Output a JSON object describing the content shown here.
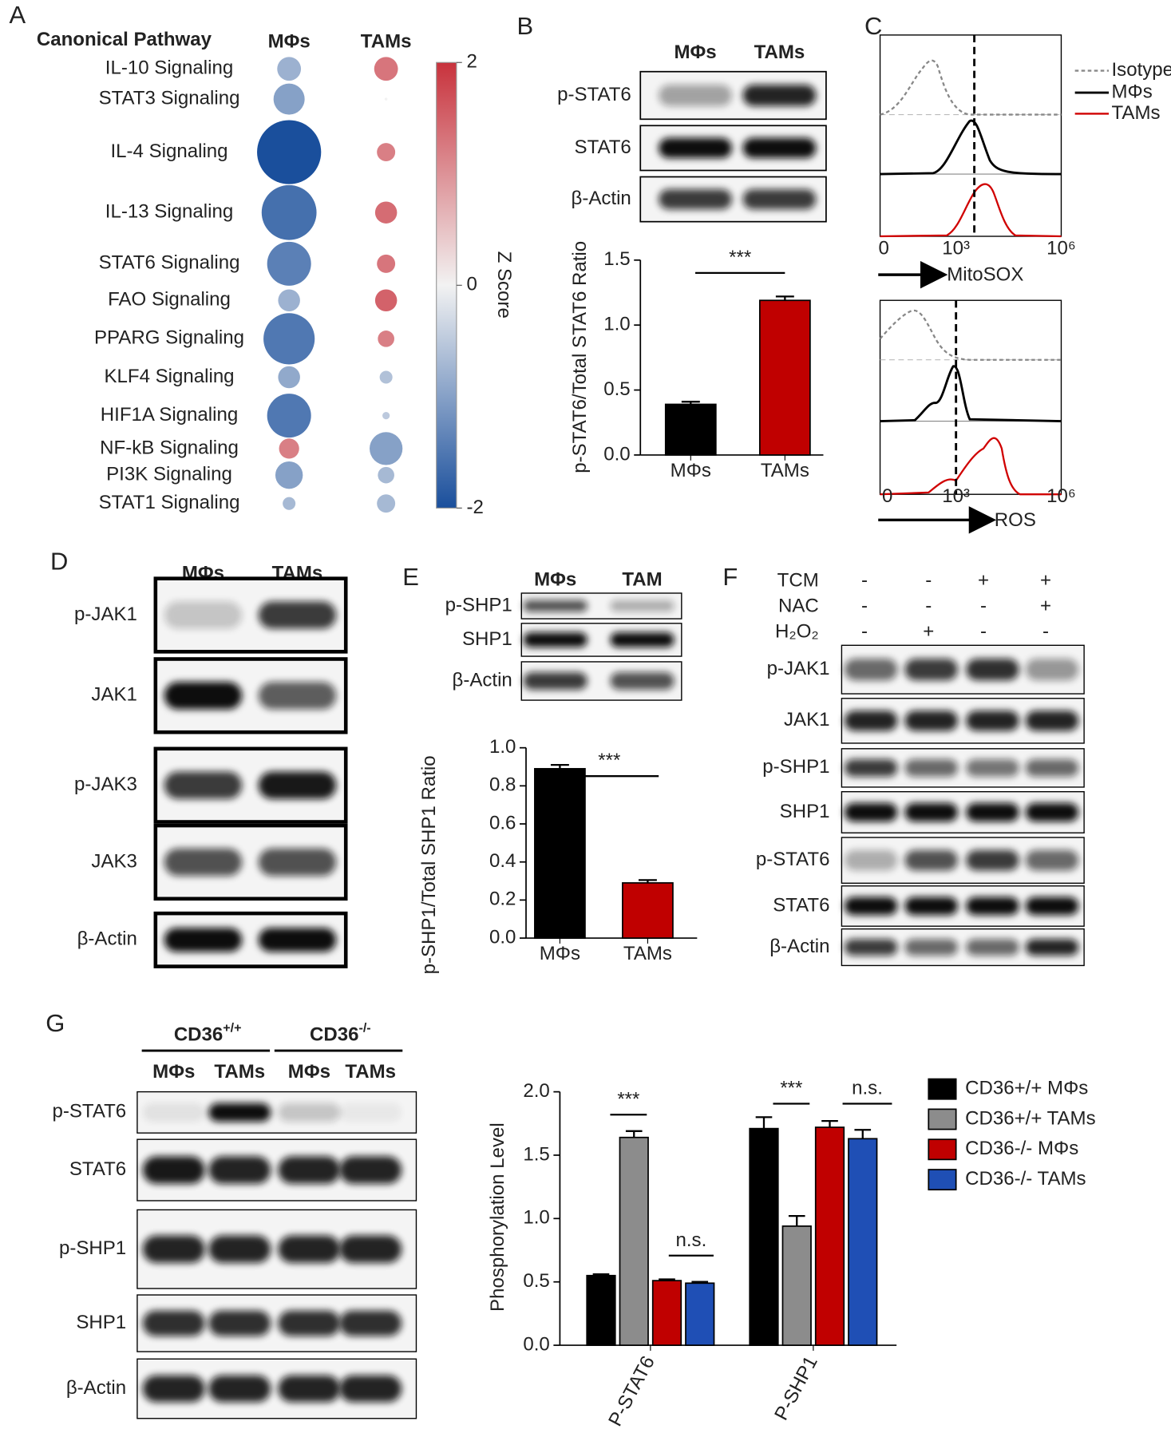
{
  "panels": [
    "A",
    "B",
    "C",
    "D",
    "E",
    "F",
    "G"
  ],
  "chart_data": [
    {
      "type": "bubble",
      "title": "Canonical Pathway",
      "categories": [
        "IL-10 Signaling",
        "STAT3 Signaling",
        "IL-4 Signaling",
        "IL-13 Signaling",
        "STAT6 Signaling",
        "FAO Signaling",
        "PPARG Signaling",
        "KLF4 Signaling",
        "HIF1A Signaling",
        "NF-kB Signaling",
        "PI3K Signaling",
        "STAT1 Signaling"
      ],
      "series": [
        {
          "name": "MΦs",
          "values": [
            -0.8,
            -1.0,
            -2,
            -1.6,
            -1.4,
            -0.8,
            -1.5,
            -0.9,
            -1.5,
            1.2,
            -1.0,
            -0.7
          ],
          "sizes": [
            13,
            17,
            35,
            30,
            24,
            12,
            28,
            12,
            24,
            11,
            15,
            7
          ]
        },
        {
          "name": "TAMs",
          "values": [
            1.3,
            0,
            1.2,
            1.4,
            1.3,
            1.5,
            1.2,
            -0.6,
            -0.5,
            -1.0,
            -0.7,
            -0.7
          ],
          "sizes": [
            13,
            1.5,
            10,
            12,
            10,
            12,
            9,
            7,
            4,
            18,
            9,
            10
          ]
        }
      ],
      "colorbar": {
        "label": "Z Score",
        "lim": [
          -2,
          2
        ],
        "ticks": [
          -2,
          0,
          2
        ],
        "colors": [
          "#1a4f9c",
          "#f2f2f2",
          "#c8323c"
        ]
      }
    },
    {
      "type": "bar",
      "ylabel": "p-STAT6/Total STAT6 Ratio",
      "categories": [
        "MΦs",
        "TAMs"
      ],
      "values": [
        0.39,
        1.19
      ],
      "errors": [
        0.02,
        0.03
      ],
      "colors": [
        "#000000",
        "#c00000"
      ],
      "ylim": [
        0,
        1.5
      ],
      "yticks": [
        {
          "value": 0,
          "label": "0.0"
        },
        0.5,
        {
          "value": 1,
          "label": "1.0"
        },
        1.5
      ],
      "annotations": [
        "***"
      ]
    },
    {
      "type": "bar",
      "ylabel": "p-SHP1/Total SHP1 Ratio",
      "categories": [
        "MΦs",
        "TAMs"
      ],
      "values": [
        0.89,
        0.29
      ],
      "errors": [
        0.02,
        0.015
      ],
      "colors": [
        "#000000",
        "#c00000"
      ],
      "ylim": [
        0,
        1
      ],
      "yticks": [
        {
          "value": 0,
          "label": "0.0"
        },
        0.2,
        0.4,
        0.6,
        0.8,
        {
          "value": 1,
          "label": "1.0"
        }
      ],
      "annotations": [
        "***"
      ]
    },
    {
      "type": "grouped_bar",
      "ylabel": "Phosphorylation Level",
      "categories": [
        "P-STAT6",
        "P-SHP1"
      ],
      "series": [
        {
          "name": "CD36+/+ MΦs",
          "color": "#000000",
          "values": [
            0.55,
            1.71
          ],
          "errors": [
            0.01,
            0.09
          ]
        },
        {
          "name": "CD36+/+ TAMs",
          "color": "#8c8c8c",
          "values": [
            1.64,
            0.94
          ],
          "errors": [
            0.05,
            0.08
          ]
        },
        {
          "name": "CD36-/- MΦs",
          "color": "#c00000",
          "values": [
            0.51,
            1.72
          ],
          "errors": [
            0.01,
            0.05
          ]
        },
        {
          "name": "CD36-/- TAMs",
          "color": "#1f4fb5",
          "values": [
            0.49,
            1.63
          ],
          "errors": [
            0.01,
            0.07
          ]
        }
      ],
      "ylim": [
        0,
        2
      ],
      "yticks": [
        {
          "value": 0,
          "label": "0.0"
        },
        0.5,
        {
          "value": 1,
          "label": "1.0"
        },
        1.5,
        {
          "value": 2,
          "label": "2.0"
        }
      ],
      "annotations": [
        "***",
        "n.s.",
        "***",
        "n.s."
      ]
    }
  ],
  "blots": {
    "B": {
      "lanes": [
        "MΦs",
        "TAMs"
      ],
      "rows": [
        "p-STAT6",
        "STAT6",
        "β-Actin"
      ]
    },
    "D": {
      "lanes": [
        "MΦs",
        "TAMs"
      ],
      "rows": [
        "p-JAK1",
        "JAK1",
        "p-JAK3",
        "JAK3",
        "β-Actin"
      ]
    },
    "E": {
      "lanes": [
        "MΦs",
        "TAM"
      ],
      "rows": [
        "p-SHP1",
        "SHP1",
        "β-Actin"
      ]
    },
    "F": {
      "conditions": [
        {
          "name": "TCM",
          "signs": [
            "-",
            "-",
            "+",
            "+"
          ]
        },
        {
          "name": "NAC",
          "signs": [
            "-",
            "-",
            "-",
            "+"
          ]
        },
        {
          "name": "H₂O₂",
          "signs": [
            "-",
            "+",
            "-",
            "-"
          ]
        }
      ],
      "rows": [
        "p-JAK1",
        "JAK1",
        "p-SHP1",
        "SHP1",
        "p-STAT6",
        "STAT6",
        "β-Actin"
      ]
    },
    "G": {
      "groups": [
        {
          "name": "CD36",
          "sup": "+/+"
        },
        {
          "name": "CD36",
          "sup": "-/-"
        }
      ],
      "lanes": [
        "MΦs",
        "TAMs",
        "MΦs",
        "TAMs"
      ],
      "rows": [
        "p-STAT6",
        "STAT6",
        "p-SHP1",
        "SHP1",
        "β-Actin"
      ]
    }
  },
  "flow": {
    "legend": [
      "Isotype",
      "MΦs",
      "TAMs"
    ],
    "plots": [
      {
        "xticks": [
          "0",
          "10³",
          "10⁶"
        ],
        "xlabel": "MitoSOX"
      },
      {
        "xticks": [
          "0",
          "10³",
          "10⁶"
        ],
        "xlabel": "ROS"
      }
    ]
  }
}
